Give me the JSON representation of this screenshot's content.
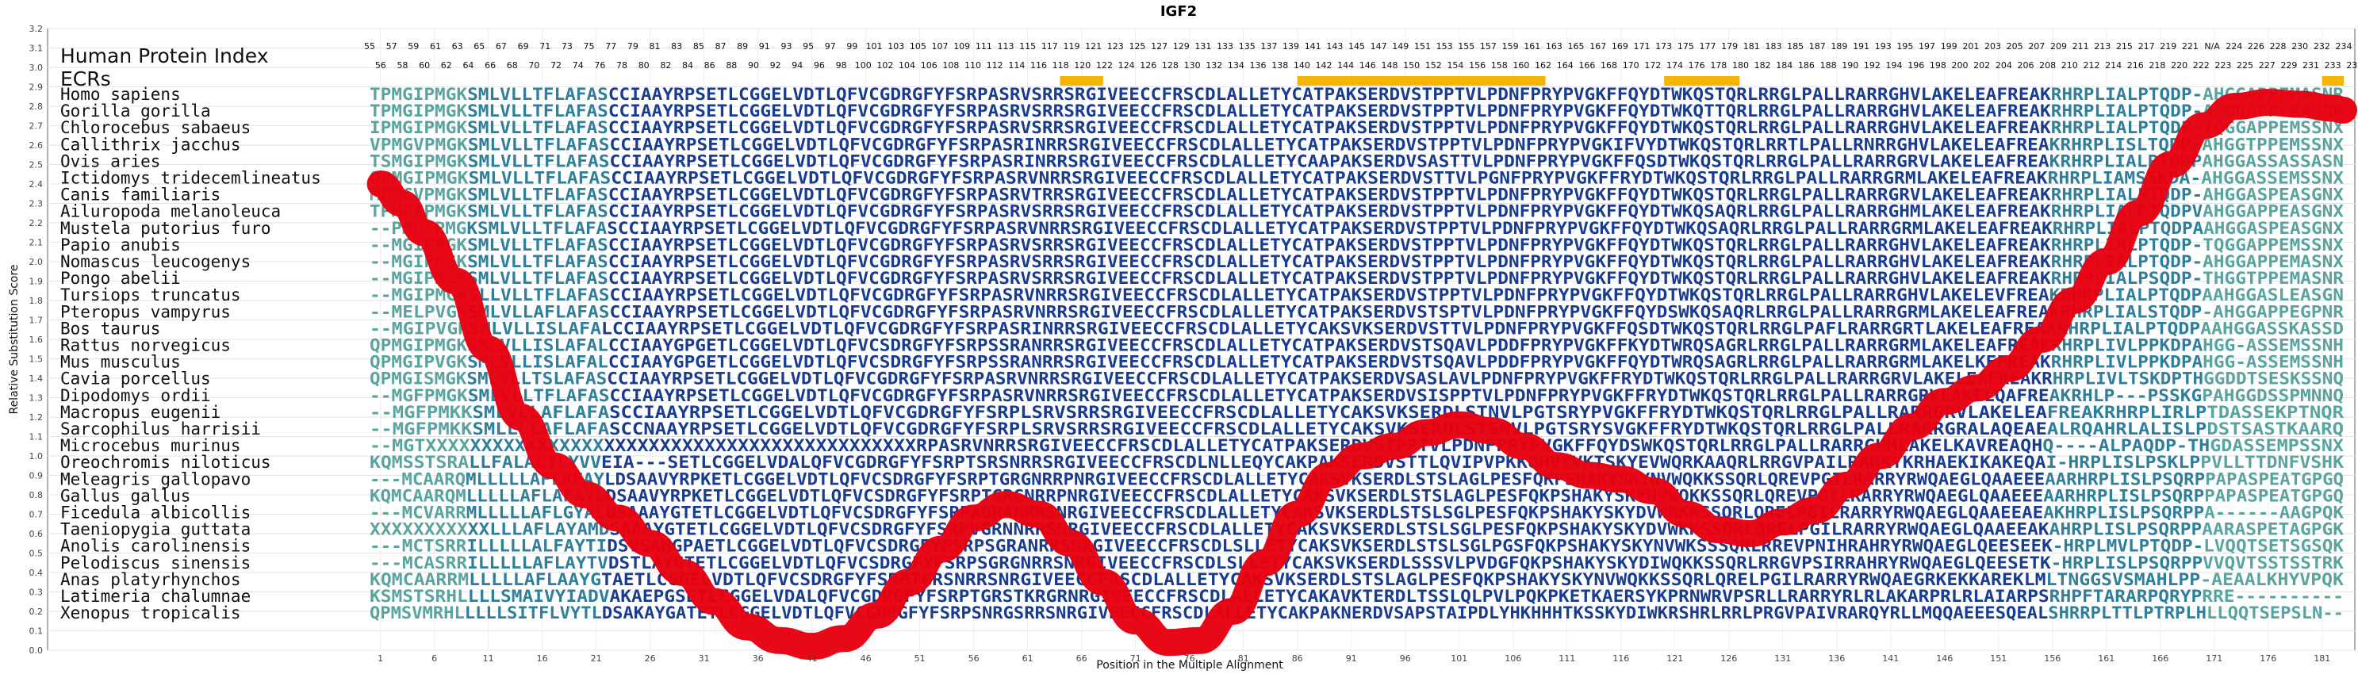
{
  "chart_data": {
    "type": "line",
    "title": "IGF2",
    "xlabel": "Position in the Multiple Alignment",
    "ylabel": "Relative Substitution Score",
    "xlim": [
      0,
      183
    ],
    "ylim": [
      0.0,
      3.2
    ],
    "y_ticks": [
      0.0,
      0.1,
      0.2,
      0.3,
      0.4,
      0.5,
      0.6,
      0.7,
      0.8,
      0.9,
      1.0,
      1.1,
      1.2,
      1.3,
      1.4,
      1.5,
      1.6,
      1.7,
      1.8,
      1.9,
      2.0,
      2.1,
      2.2,
      2.3,
      2.4,
      2.5,
      2.6,
      2.7,
      2.8,
      2.9,
      3.0,
      3.1,
      3.2
    ],
    "x_ticks": [
      1,
      6,
      11,
      16,
      21,
      26,
      31,
      36,
      41,
      46,
      51,
      56,
      61,
      66,
      71,
      76,
      81,
      86,
      91,
      96,
      101,
      106,
      111,
      116,
      121,
      126,
      131,
      136,
      141,
      146,
      151,
      156,
      161,
      166,
      171,
      176,
      181
    ],
    "grid": true,
    "header_labels": [
      "Human Protein Index",
      "ECRs"
    ],
    "human_index_row1": [
      "55",
      "57",
      "59",
      "61",
      "63",
      "65",
      "67",
      "69",
      "71",
      "73",
      "75",
      "77",
      "79",
      "81",
      "83",
      "85",
      "87",
      "89",
      "91",
      "93",
      "95",
      "97",
      "99",
      "101",
      "103",
      "105",
      "107",
      "109",
      "111",
      "113",
      "115",
      "117",
      "119",
      "121",
      "123",
      "125",
      "127",
      "129",
      "131",
      "133",
      "135",
      "137",
      "139",
      "141",
      "143",
      "145",
      "147",
      "149",
      "151",
      "153",
      "155",
      "157",
      "159",
      "161",
      "163",
      "165",
      "167",
      "169",
      "171",
      "173",
      "175",
      "177",
      "179",
      "181",
      "183",
      "185",
      "187",
      "189",
      "191",
      "193",
      "195",
      "197",
      "199",
      "201",
      "203",
      "205",
      "207",
      "209",
      "211",
      "213",
      "215",
      "217",
      "219",
      "221",
      "N/A",
      "224",
      "226",
      "228",
      "230",
      "232",
      "234"
    ],
    "human_index_row2": [
      "56",
      "58",
      "60",
      "62",
      "64",
      "66",
      "68",
      "70",
      "72",
      "74",
      "76",
      "78",
      "80",
      "82",
      "84",
      "86",
      "88",
      "90",
      "92",
      "94",
      "96",
      "98",
      "100",
      "102",
      "104",
      "106",
      "108",
      "110",
      "112",
      "114",
      "116",
      "118",
      "120",
      "122",
      "124",
      "126",
      "128",
      "130",
      "132",
      "134",
      "136",
      "138",
      "140",
      "142",
      "144",
      "146",
      "148",
      "150",
      "152",
      "154",
      "156",
      "158",
      "160",
      "162",
      "164",
      "166",
      "168",
      "170",
      "172",
      "174",
      "176",
      "178",
      "180",
      "182",
      "184",
      "186",
      "188",
      "190",
      "192",
      "194",
      "196",
      "198",
      "200",
      "202",
      "204",
      "206",
      "208",
      "210",
      "212",
      "214",
      "216",
      "218",
      "220",
      "222",
      "223",
      "225",
      "227",
      "229",
      "231",
      "233",
      "235"
    ],
    "ecr_regions": [
      [
        64,
        68
      ],
      [
        86,
        109
      ],
      [
        120,
        127
      ],
      [
        181,
        183
      ]
    ],
    "ecr_color": "#f5b400",
    "series": [
      {
        "color": "#e8000f",
        "x": [
          1,
          3,
          5,
          8,
          11,
          14,
          17,
          20,
          23,
          26,
          29,
          32,
          35,
          38,
          41,
          44,
          47,
          50,
          53,
          56,
          59,
          62,
          65,
          68,
          71,
          74,
          77,
          80,
          83,
          86,
          89,
          92,
          95,
          98,
          101,
          104,
          107,
          110,
          113,
          116,
          119,
          122,
          125,
          128,
          131,
          134,
          137,
          140,
          143,
          146,
          149,
          152,
          155,
          158,
          161,
          164,
          167,
          170,
          173,
          176,
          179,
          182,
          183
        ],
        "y": [
          2.4,
          2.3,
          2.15,
          1.9,
          1.55,
          1.2,
          0.95,
          0.8,
          0.68,
          0.55,
          0.4,
          0.25,
          0.12,
          0.05,
          0.02,
          0.06,
          0.18,
          0.35,
          0.52,
          0.68,
          0.75,
          0.7,
          0.55,
          0.35,
          0.15,
          0.04,
          0.05,
          0.2,
          0.45,
          0.7,
          0.9,
          1.0,
          1.05,
          1.12,
          1.16,
          1.13,
          1.05,
          0.95,
          0.9,
          0.88,
          0.82,
          0.7,
          0.62,
          0.6,
          0.66,
          0.72,
          0.85,
          1.0,
          1.15,
          1.28,
          1.35,
          1.45,
          1.6,
          1.8,
          2.0,
          2.25,
          2.5,
          2.7,
          2.8,
          2.82,
          2.81,
          2.79,
          2.78
        ]
      }
    ],
    "species": [
      {
        "name": "Homo sapiens",
        "seq": "TPMGIPMGKSMLVLLTFLAFASCCIAAYRPSETLCGGELVDTLQFVCGDRGFYFSRPASRVSRRSRGIVEECCFRSCDLALLETYCATPAKSERDVSTPPTVLPDNFPRYPVGKFFQYDTWKQSTQRLRRGLPALLRARRGHVLAKELEAFREAKRHRPLIALPTQDP-AHGGAPPEMASNR"
      },
      {
        "name": "Gorilla gorilla",
        "seq": "TPMGIPMGKSMLVLLTFLAFASCCIAAYRPSETLCGGELVDTLQFVCGDRGFYFSRPASRVSRRSRGIVEECCFRSCDLALLETYCATPAKSERDVSTPPTVLPDNFPRYPVGKFFQYDTWKQTTQRLRRGLPALLRARRGHVLAKELEAFREAKRHRPLIALPTQDP-AHGGAPPEMASNR"
      },
      {
        "name": "Chlorocebus sabaeus",
        "seq": "IPMGIPMGKSMLVLLTFLAFASCCIAAYRPSETLCGGELVDTLQFVCGDRGFYFSRPASRVSRRSRGIVEECCFRSCDLALLETYCATPAKSERDVSTPPTVLPDNFPRYPVGKFFQYDTWKQSTQRLRRGLPALLRARRGHVLAKELEAFREAKRHRPLIALPTQDP-TQGGAPPEMSSNX"
      },
      {
        "name": "Callithrix jacchus",
        "seq": "VPMGVPMGKSMLVLLTFLAFASCCIAAYRPSETLCGGELVDTLQFVCGDRGFYFSRPASRINRRSRGIVEECCFRSCDLALLETYCATPAKSERDVSTPPTVLPDNFPRYPVGKIFVYDTWKQSTQRLRRTLPALLRNRRGHVLAKELEAFREAKRHRPLISLTQDP-AHGGTPPEMSSNX"
      },
      {
        "name": "Ovis aries",
        "seq": "TSMGIPMGKSMLVLLTFLAFASCCIAAYRPSETLCGGELVDTLQFVCGDRGFYFSRPASRINRRSRGIVEECCFRSCDLALLETYCAAPAKSERDVSASTTVLPDNFPRYPVGKFFQSDTWKQSTQRLRRGLPALLRARRGRVLAKELEAFREAKRHRPLIALPTQDPAHGGASSASSASN"
      },
      {
        "name": "Ictidomys tridecemlineatus",
        "seq": "QPMGIPMGKSMLVLLTFLAFASCCIAAYRPSETLCGGELVDTLQFVCGDRGFYFSRPASRVNRRSRGIVEECCFRSCDLALLETYCATPAKSERDVSTTVLPGNFPRYPVGKFFRYDTWKQSTQRLRRGLPALLRARRGRMLAKELEAFREAKRHRPLIAMSSKDA-AHGGASSEMSSNX"
      },
      {
        "name": "Canis familiaris",
        "seq": "MPMGVPMGKSMLVLLTFLAFASCCIAAYRPSETLCGGELVDTLQFVCGDRGFYFSRPASRVTRRSRGIVEECCFRSCDLALLETYCATPAKSERDVSTPPTVLPDNFPRYPVGKFFQYDTWKQSTQRLRRGLPALLRARRGRVLAKELEAFREAKRHRPLIALPTQDP-AHGGASPEASGNX"
      },
      {
        "name": "Ailuropoda melanoleuca",
        "seq": "TPMGIPMGKSMLVLLTFLAFASCCIAAYRPSETLCGGELVDTLQFVCGDRGFYFSRPASRVSRRSRGIVEECCFRSCDLALLETYCATPAKSERDVSTPPTVLPDNFPRYPVGKFFQYDTWKQSAQRLRRGLPALLRARRGHMLAKELEAFREAKRHRPLIALPTQDPVAHGGAPPEASGNX"
      },
      {
        "name": "Mustela putorius furo",
        "seq": "--PMGIPMGKSMLVLLTFLAFASCCIAAYRPSETLCGGELVDTLQFVCGDRGFYFSRPASRVNRRSRGIVEECCFRSCDLALLETYCATPAKSERDVSTPPTVLPDNFPRYPVGKFFQYDTWKQSAQRLRRGLPALLRARRGRMLAKELEAFREAKRHRPLIALPTQDPAAHGGASPEASGNX"
      },
      {
        "name": "Papio anubis",
        "seq": "--MGIPMGKSMLVLLTFLAFASCCIAAYRPSETLCGGELVDTLQFVCGDRGFYFSRPASRVSRRSRGIVEECCFRSCDLALLETYCATPAKSERDVSTPPTVLPDNFPRYPVGKFFQYDTWKQSTQRLRRGLPALLRARRGHVLAKELEAFREAKRHRPLIALPTQDP-TQGGAPPEMSSNX"
      },
      {
        "name": "Nomascus leucogenys",
        "seq": "--MGIPMGKSMLVLLTFLAFASCCIAAYRPSETLCGGELVDTLQFVCGDRGFYFSRPASRVSRRSRGIVEECCFRSCDLALLETYCATPAKSERDVSTPPTVLPDNFPRYPVGKFFQYDTWKQSTQRLRRGLPALLRARRGHVLAKELEAFREAKRHRPLIALPTQDP-AHGGAPPEMASNX"
      },
      {
        "name": "Pongo abelii",
        "seq": "--MGIPMGKSMLVLLTFLAFASCCIAAYRPSETLCGGELVDTLQFVCGDRGFYFSRPASRVSRRSRGIVEECCFRSCDLALLETYCATPAKSERDVSTPPTVLPDNFPRYPVGKFFQYDTWKQSTQRLRRGLPALLRARRGHVLAKELEAFREAKRHRPLIALPSQDP-THGGTPPEMASNR"
      },
      {
        "name": "Tursiops truncatus",
        "seq": "--MGIPMGKSLLVLLTFLAFASCCIAAYRPSETLCGGELVDTLQFVCGDRGFYFSRPASRVNRRSRGIVEECCFRSCDLALLETYCATPAKSERDVSTPPTVLPDNFPRYPVGKFFQYDTWKQSTQRLRRGLPALLRARRGHVLAKELEVFREAKRHRPLIALPTQDPAAHGGASLEASGN"
      },
      {
        "name": "Pteropus vampyrus",
        "seq": "--MELPVGKSMLVLLAFLAFASCCIAAYRPSETLCGGELVDTLQFVCGDRGFYFSRPASRVNRRSRGIVEECCFRSCDLALLETYCATPAKSERDVSTSPTVLPDNFPRYPVGKFFQYDSWKQSAQRLRRGLPALLRARRGRMLAKELEAFREAKRHRPLIALSTQDP-AHGGAPPEGPNR"
      },
      {
        "name": "Bos taurus",
        "seq": "--MGIPVGKSMLVLLISLAFALCCIAAYRPSETLCGGELVDTLQFVCGDRGFYFSRPASRINRRSRGIVEECCFRSCDLALLETYCAKSVKSERDVSTTVLPDNFPRYPVGKFFQSDTWKQSTQRLRRGLPAFLRARRGRTLAKELEAFREAKRHRPLIALPTQDPAAHGGASSKASSD"
      },
      {
        "name": "Rattus norvegicus",
        "seq": "QPMGIPMGKSMLVLLISLAFALCCIAAYGPGETLCGGELVDTLQFVCSDRGFYFSRPSSRANRRSRGIVEECCFRSCDLALLETYCATPAKSERDVSTSQAVLPDDFPRYPVGKFFKYDTWRQSAGRLRRGLPALLRARRGRMLAKELEAFREAKRHRPLIVLPPKDPAHGG-ASSEMSSNH"
      },
      {
        "name": "Mus musculus",
        "seq": "QPMGIPVGKSMLVLLISLAFALCCIAAYGPGETLCGGELVDTLQFVCSDRGFYFSRPSSRANRRSRGIVEECCFRSCDLALLETYCATPAKSERDVSTSQAVLPDDFPRYPVGKFFQYDTWRQSAGRLRRGLPALLRARRGRMLAKELKEFREAKRHRPLIVLPPKDPAHGG-ASSEMSSNH"
      },
      {
        "name": "Cavia porcellus",
        "seq": "QPMGISMGKSMLVLLTSLAFASCCIAAYRPSETLCGGELVDTLQFVCGDRGFYFSRPASRVNRRSRGIVEECCFRSCDLALLETYCATPAKSERDVSASLAVLPDNFPRYPVGKFFRYDTWKQSTQRLRRGLPALLRARRGRVLAKELEAFREAKRHRPLIVLTSKDPTHGGDDTSESKSSNQ"
      },
      {
        "name": "Dipodomys ordii",
        "seq": "--MGFPMGKSMLVLLTFLAFASCCIAAYRPSETLCGGELVDTLQFVCGDRGFYFSRPASRVNRRSRGIVEECCFRSCDLALLETYCATPAKSERDVSISPPTVLPDNFPRYPVGKFFRYDTWKQSTQRLRRGLPALLRARRGRVLAKELQAFREAKRHLP---PSSKGPAHGGDSSPMNNQ"
      },
      {
        "name": "Macropus eugenii",
        "seq": "--MGFPMKKSMLVLLAFLAFASCCIAAYRPSETLCGGELVDTLQFVCGDRGFYFSRPLSRVSRRSRGIVEECCFRSCDLALLETYCAKSVKSERDLSTNVLPGTSRYPVGKFFRYDTWKQSTQRLRRGLPALLRARRGRVLAKELEAFREAKRHRPLIRLPTDASSEKPTNQR"
      },
      {
        "name": "Sarcophilus harrisii",
        "seq": "--MGFPMKKSMLLLLAFLAFASCCNAAYRPSETLCGGELVDTLQFVCGDRGFYFSRPLSRVSRRSRGIVEECCFRSCDLALLETYCAKSVKSERDLSTSNVLPGTSRYSVGKFFRYDTWKQSTQRLRRGLPALLRARRGRALAQEAEALRQAHRLALISLPDSTSASTKAARQ"
      },
      {
        "name": "Microcebus murinus",
        "seq": "--MGTXXXXXXXXXXXXXXXXXXXXXXXXXXXXXXXXXXXXXXXXXXXXRPASRVNRRSRGIVEECCFRSCDLALLETYCATPAKSERDVSTPPTVLPDNFPRYPVGKFFQYDSWKQSTQRLRRGLPALLRARRGHMLAKELKAVREAQHQ----ALPAQDP-THGDASSEMPSSNX"
      },
      {
        "name": "Oreochromis niloticus",
        "seq": "KQMSSTSRALLFALALTLYVVEIA---SETLCGGELVDALQFVCGDRGFYFSRPTSRSNRRSRGIVEECCFRSCDLNLLEQYCAKPAKSERDVSTTLQVIPVPKKQHVTVKTSKYEVWQRKAAQRLRRGVPAILRARKYKRHAEKIKAKEQAI-HRPLISLPSKLPPVLLTTDNFVSHK"
      },
      {
        "name": "Meleagris gallopavo",
        "seq": "---MCAARQMLLLLLAFLAFAYLDSAAVYRPKETLCGGELVDTLQFVCSDRGFYFSRPTGRGNRRPNRGIVEECCFRSCDLALLETYCAKSVKSERDLSTSLAGLPESFQKPSHAKYSKYNVWQKKSSQRLQREVPGILRARRYRWQAEGLQAAEEEAARHRPLISLPSQRPPAPASPEATGPGQ"
      },
      {
        "name": "Gallus gallus",
        "seq": "KQMCAARQMLLLLLAFLAFAYLDSAAVYRPKETLCGGELVDTLQFVCSDRGFYFSRPTGRGNRRPNRGIVEECCFRSCDLALLETYCAKSVKSERDLSTSLAGLPESFQKPSHAKYSKYNVWQKKSSQRLQREVPGILRARRYRWQAEGLQAAEEEAARHRPLISLPSQRPPAPASPEATGPGQ"
      },
      {
        "name": "Ficedula albicollis",
        "seq": "---MCVARRMLLLLLAFLGYALDSAAAYGTETLCGGELVDTLQFVCSDRGFYFSRPAGRANRRSNRGIVEECCFRSCDLALLETYCAKSVKSERDLSTSLSGLPESFQKPSHAKYSKYDVWRKKSSQRLQRELPGILRARRYRWQAEGLQAAEEAEAKHRPLISLPSQRPPA------AAGPQK"
      },
      {
        "name": "Taeniopygia guttata",
        "seq": "XXXXXXXXXXXLLLAFLAYAMDSAAAYGTETLCGGELVDTLQFVCSDRGFYFSRPVGRNNRRSNRGIVEECCFRSCDLALLETYCAKSVKSERDLSTSLSGLPESFQKPSHAKYSKYDVWKKSSQRLQRELPGILRARRYRWQAEGLQAAEEAKAHRPLISLPSQRPPAARASPETAGPGK"
      },
      {
        "name": "Anolis carolinensis",
        "seq": "---MCTSRRILLLLLALFAYTIDSVSAHGPAETLCGGELVDTLQFVCSDRGFYFSRPSGRANRRSNRGIVEECCFRSCDLSLLETYCAKSVKSERDLSTSLSGLPGSFQKPSHAKYSKYNVWKSSSQRLRREVPNIHRAHRYRWQAEGLQEESEEK-HRPLMVLPTQDP-LVQQTSETSGSQK"
      },
      {
        "name": "Pelodiscus sinensis",
        "seq": "---MCASRRILLLLLAFLAYTVDSTLAYGTETLCGGELVDTLQFVCSDRGFYFSRPSGRGNRRSNRGIVEECCFRSCDLSLLETYCAKSVKSERDLSSSVLPVDGFQKPSHAKYSKYDIWQKKSSQRLRRGVPSIRRAHRYRWQAEGLQEESETK-HRPLISLPSQRPPVVQVTSSTSSTRK"
      },
      {
        "name": "Anas platyrhynchos",
        "seq": "KQMCAARRMLLLLLAFLAAYGTAETLCGGELVDTLQFVCSDRGFYFSRPTGRSNRRSNRGIVEECCFRSCDLALLETYCAKSVKSERDLSTSLAGLPESFQKPSHAKYSKYNVWQKKSSQRLQRELPGILRARRYRWQAEGRKEKKAREKLMLTNGGSVSMAHLPP-AEAALKHYVPQK"
      },
      {
        "name": "Latimeria chalumnae",
        "seq": "KSMSTSRHLLLLSMAIVYIADVAKAEPGSETLCGGELVDALQFVCGDRGFYFSRPTGRSTKRGRNRGIVEECCFRSCDLALLETYCAKAVKTERDLTSSLQLPVLPQKPKETKAERSYKPRNWRVPSRLLRARRYRLRLAKARPRLRLAIARPSRHPFTARARPQRYPRRE----------"
      },
      {
        "name": "Xenopus tropicalis",
        "seq": "QPMSVMRHLLLLLSITFLVYTLDSAKAYGATETLCGGELVDTLQFVCGDRGFYFSRPSNRGSRRSNRGIVEECCFRSCDLALLETYCAKPAKNERDVSAPSTAIPDLYHKHHHTKSSKYDIWKRSHRLRRLPRGVPAIVRARQYRLLMQQAEEESQEALSHRRPLTTLPTRPLHLLQQTSEPSLN--"
      }
    ]
  }
}
